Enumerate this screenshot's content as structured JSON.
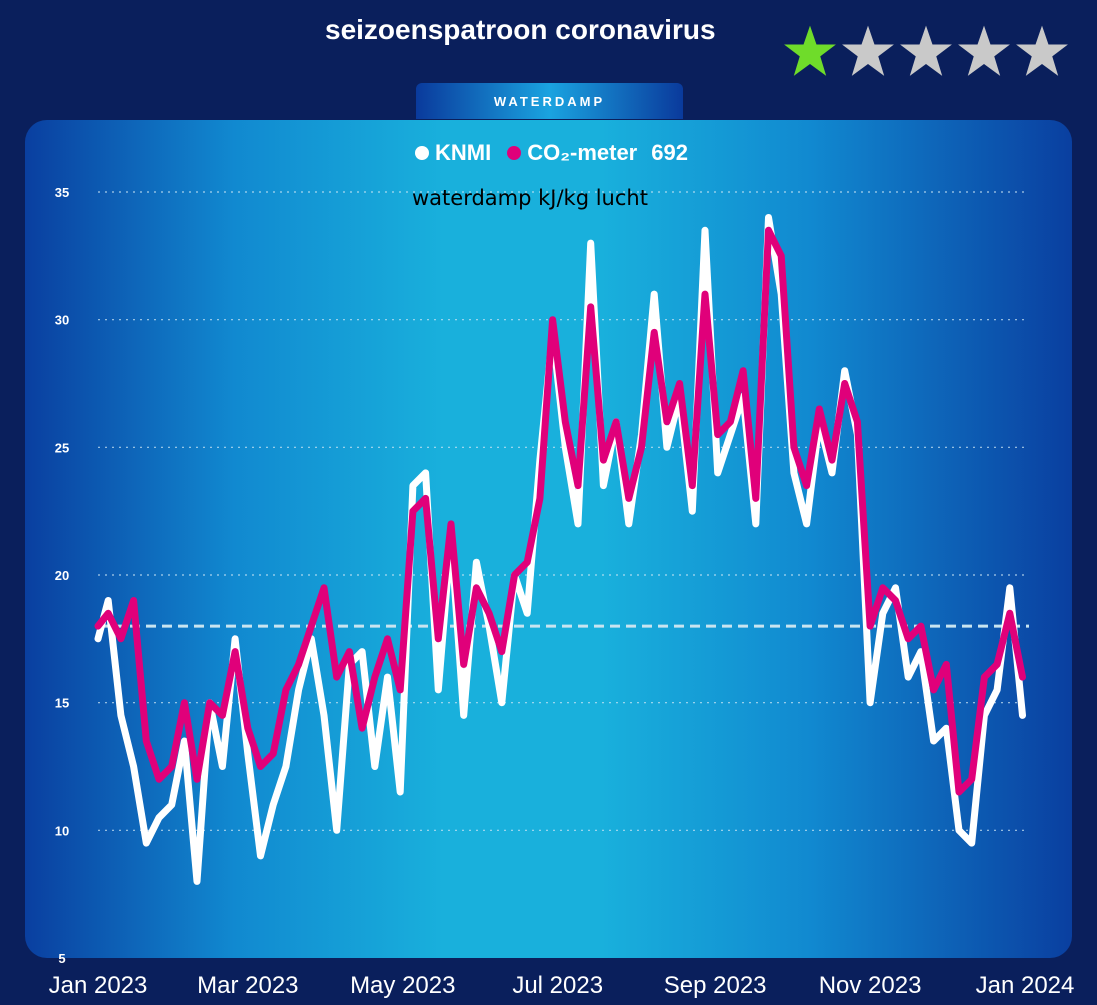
{
  "header": {
    "title": "seizoenspatroon coronavirus",
    "tab_label": "WATERDAMP",
    "rating": 1,
    "rating_max": 5,
    "star_colors": {
      "filled": "#6fdc2a",
      "empty": "#c9c9c9"
    }
  },
  "legend": {
    "items": [
      {
        "label": "KNMI",
        "color": "#ffffff"
      },
      {
        "label": "CO₂-meter",
        "color": "#e0007a"
      }
    ],
    "count": "692"
  },
  "chart_data": {
    "type": "line",
    "title": "",
    "ylabel": "waterdamp kJ/kg lucht",
    "xlabel": "",
    "ylim": [
      5,
      35
    ],
    "yticks": [
      "35",
      "30",
      "25",
      "20",
      "15",
      "10",
      "5"
    ],
    "xlim": [
      "2023-01-01",
      "2024-01-01"
    ],
    "xticks": [
      "Jan 2023",
      "Mar 2023",
      "May 2023",
      "Jul 2023",
      "Sep 2023",
      "Nov 2023",
      "Jan 2024"
    ],
    "reference_line": 18,
    "grid": true,
    "colors": {
      "KNMI": "#ffffff",
      "CO2": "#e0007a",
      "reference": "#c8e4f0"
    },
    "series": [
      {
        "name": "KNMI",
        "x": [
          "2023-01-01",
          "2023-01-05",
          "2023-01-10",
          "2023-01-15",
          "2023-01-20",
          "2023-01-25",
          "2023-01-30",
          "2023-02-04",
          "2023-02-09",
          "2023-02-14",
          "2023-02-19",
          "2023-02-24",
          "2023-03-01",
          "2023-03-06",
          "2023-03-11",
          "2023-03-16",
          "2023-03-21",
          "2023-03-26",
          "2023-03-31",
          "2023-04-05",
          "2023-04-10",
          "2023-04-15",
          "2023-04-20",
          "2023-04-25",
          "2023-04-30",
          "2023-05-05",
          "2023-05-10",
          "2023-05-15",
          "2023-05-20",
          "2023-05-25",
          "2023-05-30",
          "2023-06-04",
          "2023-06-09",
          "2023-06-14",
          "2023-06-19",
          "2023-06-24",
          "2023-06-29",
          "2023-07-04",
          "2023-07-09",
          "2023-07-14",
          "2023-07-19",
          "2023-07-24",
          "2023-07-29",
          "2023-08-03",
          "2023-08-08",
          "2023-08-13",
          "2023-08-18",
          "2023-08-23",
          "2023-08-28",
          "2023-09-02",
          "2023-09-07",
          "2023-09-12",
          "2023-09-17",
          "2023-09-22",
          "2023-09-27",
          "2023-10-02",
          "2023-10-07",
          "2023-10-12",
          "2023-10-17",
          "2023-10-22",
          "2023-10-27",
          "2023-11-01",
          "2023-11-06",
          "2023-11-11",
          "2023-11-16",
          "2023-11-21",
          "2023-11-26",
          "2023-12-01",
          "2023-12-06",
          "2023-12-11",
          "2023-12-16",
          "2023-12-21",
          "2023-12-26",
          "2023-12-31"
        ],
        "values": [
          17.5,
          19.0,
          14.5,
          12.5,
          9.5,
          10.5,
          11.0,
          13.5,
          8.0,
          15.0,
          12.5,
          17.5,
          13.0,
          9.0,
          11.0,
          12.5,
          15.5,
          17.5,
          14.5,
          10.0,
          16.5,
          17.0,
          12.5,
          16.0,
          11.5,
          23.5,
          24.0,
          15.5,
          21.5,
          14.5,
          20.5,
          18.0,
          15.0,
          20.0,
          18.5,
          24.5,
          29.5,
          25.0,
          22.0,
          33.0,
          23.5,
          26.0,
          22.0,
          25.5,
          31.0,
          25.0,
          27.0,
          22.5,
          33.5,
          24.0,
          25.5,
          27.0,
          22.0,
          34.0,
          31.0,
          24.0,
          22.0,
          26.0,
          24.0,
          28.0,
          25.5,
          15.0,
          18.5,
          19.5,
          16.0,
          17.0,
          13.5,
          14.0,
          10.0,
          9.5,
          14.5,
          15.5,
          19.5,
          14.5
        ]
      },
      {
        "name": "CO₂-meter",
        "x": [
          "2023-01-01",
          "2023-01-05",
          "2023-01-10",
          "2023-01-15",
          "2023-01-20",
          "2023-01-25",
          "2023-01-30",
          "2023-02-04",
          "2023-02-09",
          "2023-02-14",
          "2023-02-19",
          "2023-02-24",
          "2023-03-01",
          "2023-03-06",
          "2023-03-11",
          "2023-03-16",
          "2023-03-21",
          "2023-03-26",
          "2023-03-31",
          "2023-04-05",
          "2023-04-10",
          "2023-04-15",
          "2023-04-20",
          "2023-04-25",
          "2023-04-30",
          "2023-05-05",
          "2023-05-10",
          "2023-05-15",
          "2023-05-20",
          "2023-05-25",
          "2023-05-30",
          "2023-06-04",
          "2023-06-09",
          "2023-06-14",
          "2023-06-19",
          "2023-06-24",
          "2023-06-29",
          "2023-07-04",
          "2023-07-09",
          "2023-07-14",
          "2023-07-19",
          "2023-07-24",
          "2023-07-29",
          "2023-08-03",
          "2023-08-08",
          "2023-08-13",
          "2023-08-18",
          "2023-08-23",
          "2023-08-28",
          "2023-09-02",
          "2023-09-07",
          "2023-09-12",
          "2023-09-17",
          "2023-09-22",
          "2023-09-27",
          "2023-10-02",
          "2023-10-07",
          "2023-10-12",
          "2023-10-17",
          "2023-10-22",
          "2023-10-27",
          "2023-11-01",
          "2023-11-06",
          "2023-11-11",
          "2023-11-16",
          "2023-11-21",
          "2023-11-26",
          "2023-12-01",
          "2023-12-06",
          "2023-12-11",
          "2023-12-16",
          "2023-12-21",
          "2023-12-26",
          "2023-12-31"
        ],
        "values": [
          18.0,
          18.5,
          17.5,
          19.0,
          13.5,
          12.0,
          12.5,
          15.0,
          12.0,
          15.0,
          14.5,
          17.0,
          14.0,
          12.5,
          13.0,
          15.5,
          16.5,
          18.0,
          19.5,
          16.0,
          17.0,
          14.0,
          16.0,
          17.5,
          15.5,
          22.5,
          23.0,
          17.5,
          22.0,
          16.5,
          19.5,
          18.5,
          17.0,
          20.0,
          20.5,
          23.0,
          30.0,
          26.0,
          23.5,
          30.5,
          24.5,
          26.0,
          23.0,
          25.0,
          29.5,
          26.0,
          27.5,
          23.5,
          31.0,
          25.5,
          26.0,
          28.0,
          23.0,
          33.5,
          32.5,
          25.0,
          23.5,
          26.5,
          24.5,
          27.5,
          26.0,
          18.0,
          19.5,
          19.0,
          17.5,
          18.0,
          15.5,
          16.5,
          11.5,
          12.0,
          16.0,
          16.5,
          18.5,
          16.0
        ]
      }
    ]
  }
}
